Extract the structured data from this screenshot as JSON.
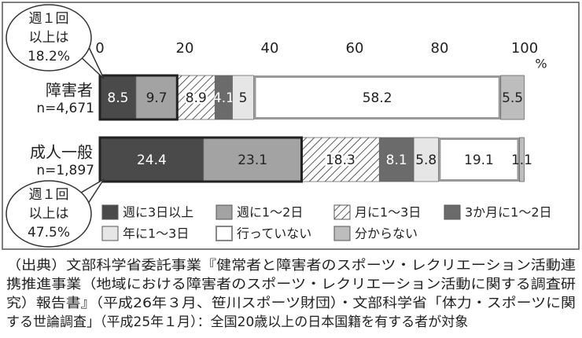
{
  "chart_data": {
    "type": "bar",
    "orientation": "horizontal",
    "stacked": true,
    "categories": [
      "障害者",
      "成人一般"
    ],
    "category_notes": [
      "n=4,671",
      "n=1,897"
    ],
    "series": [
      {
        "name": "週に3日以上",
        "color": "#4a4a4a",
        "values": [
          8.5,
          24.4
        ]
      },
      {
        "name": "週に1～2日",
        "color": "#a3a3a3",
        "values": [
          9.7,
          23.1
        ]
      },
      {
        "name": "月に1～3日",
        "color": "#ffffff",
        "hatch": true,
        "values": [
          8.9,
          18.3
        ]
      },
      {
        "name": "3か月に1～2日",
        "color": "#6b6b6b",
        "values": [
          4.1,
          8.1
        ]
      },
      {
        "name": "年に1～3日",
        "color": "#e6e6e6",
        "values": [
          5,
          5.8
        ]
      },
      {
        "name": "行っていない",
        "color": "#ffffff",
        "values": [
          58.2,
          19.1
        ]
      },
      {
        "name": "分からない",
        "color": "#bdbdbd",
        "values": [
          5.5,
          1.1
        ]
      }
    ],
    "xlim": [
      0,
      100
    ],
    "xticks": [
      0,
      20,
      40,
      60,
      80,
      100
    ],
    "x_unit": "%",
    "callouts": [
      {
        "lines": [
          "週１回",
          "以上は",
          "18.2%"
        ]
      },
      {
        "lines": [
          "週１回",
          "以上は",
          "47.5%"
        ]
      }
    ],
    "source": [
      "（出典）文部科学省委託事業『健常者と障害者のスポーツ・レクリエーション活動連",
      "携推進事業（地域における障害者のスポーツ・レクリエーション活動に関する調査研",
      "究）報告書』（平成26年３月、笹川スポーツ財団）・文部科学省「体力・スポーツに関",
      "する世論調査」（平成25年１月）：全国20歳以上の日本国籍を有する者が対象"
    ]
  }
}
